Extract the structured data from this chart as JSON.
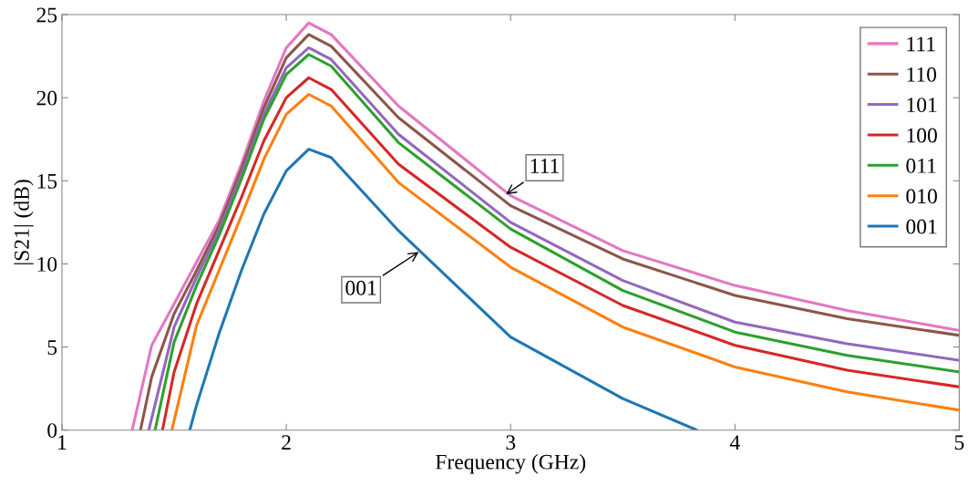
{
  "chart_data": {
    "type": "line",
    "xlabel": "Frequency (GHz)",
    "ylabel": "|S21| (dB)",
    "xlim": [
      1,
      5
    ],
    "ylim": [
      0,
      25
    ],
    "xticks": [
      1,
      2,
      3,
      4,
      5
    ],
    "yticks": [
      0,
      5,
      10,
      15,
      20,
      25
    ],
    "grid": false,
    "legend": "top right",
    "marker": "none",
    "line_style": "solid",
    "series": [
      {
        "name": "111",
        "color": "#e377c2",
        "x": [
          1.313,
          1.4,
          1.5,
          1.6,
          1.7,
          1.8,
          1.9,
          2.0,
          2.1,
          2.2,
          2.5,
          3,
          3.5,
          4,
          4.5,
          5
        ],
        "values": [
          0,
          5.1,
          7.6,
          10.1,
          12.6,
          16.0,
          19.8,
          23.0,
          24.5,
          23.8,
          19.5,
          14.1,
          10.8,
          8.7,
          7.2,
          6.0
        ]
      },
      {
        "name": "110",
        "color": "#8c564b",
        "x": [
          1.35,
          1.4,
          1.5,
          1.6,
          1.7,
          1.8,
          1.9,
          2.0,
          2.1,
          2.2,
          2.5,
          3,
          3.5,
          4,
          4.5,
          5
        ],
        "values": [
          0,
          3.2,
          7.0,
          9.6,
          12.3,
          15.7,
          19.4,
          22.4,
          23.8,
          23.1,
          18.8,
          13.5,
          10.3,
          8.1,
          6.7,
          5.7
        ]
      },
      {
        "name": "101",
        "color": "#9467bd",
        "x": [
          1.387,
          1.5,
          1.6,
          1.7,
          1.8,
          1.9,
          2.0,
          2.1,
          2.2,
          2.5,
          3,
          3.5,
          4,
          4.5,
          5
        ],
        "values": [
          0,
          6.2,
          9.2,
          12.0,
          15.4,
          19.0,
          21.8,
          23.0,
          22.3,
          17.8,
          12.5,
          9.0,
          6.5,
          5.2,
          4.2
        ]
      },
      {
        "name": "100",
        "color": "#d62728",
        "x": [
          1.448,
          1.5,
          1.6,
          1.7,
          1.8,
          1.9,
          2.0,
          2.1,
          2.2,
          2.5,
          3,
          3.5,
          4,
          4.5,
          5
        ],
        "values": [
          0,
          3.5,
          7.6,
          10.8,
          14.0,
          17.4,
          20.0,
          21.2,
          20.5,
          16.0,
          11.0,
          7.5,
          5.1,
          3.6,
          2.6
        ]
      },
      {
        "name": "011",
        "color": "#2ca02c",
        "x": [
          1.415,
          1.5,
          1.6,
          1.7,
          1.8,
          1.9,
          2.0,
          2.1,
          2.2,
          2.5,
          3,
          3.5,
          4,
          4.5,
          5
        ],
        "values": [
          0,
          5.3,
          8.7,
          11.7,
          15.1,
          18.7,
          21.4,
          22.6,
          21.9,
          17.3,
          12.1,
          8.4,
          5.9,
          4.5,
          3.5
        ]
      },
      {
        "name": "010",
        "color": "#ff7f0e",
        "x": [
          1.49,
          1.6,
          1.7,
          1.8,
          1.9,
          2.0,
          2.1,
          2.2,
          2.5,
          3,
          3.5,
          4,
          4.5,
          5
        ],
        "values": [
          0,
          6.3,
          9.6,
          12.9,
          16.3,
          19.0,
          20.2,
          19.5,
          14.9,
          9.8,
          6.2,
          3.8,
          2.3,
          1.2
        ]
      },
      {
        "name": "001",
        "color": "#1f77b4",
        "x": [
          1.57,
          1.6,
          1.7,
          1.8,
          1.9,
          2.0,
          2.1,
          2.2,
          2.5,
          3,
          3.5,
          3.83
        ],
        "values": [
          0,
          1.5,
          5.8,
          9.6,
          13.0,
          15.6,
          16.9,
          16.4,
          12.0,
          5.6,
          1.9,
          0
        ]
      }
    ],
    "annotations": [
      {
        "text": "111",
        "x": 2.97,
        "y": 14.1
      },
      {
        "text": "001",
        "x": 2.6,
        "y": 10.8
      }
    ]
  }
}
